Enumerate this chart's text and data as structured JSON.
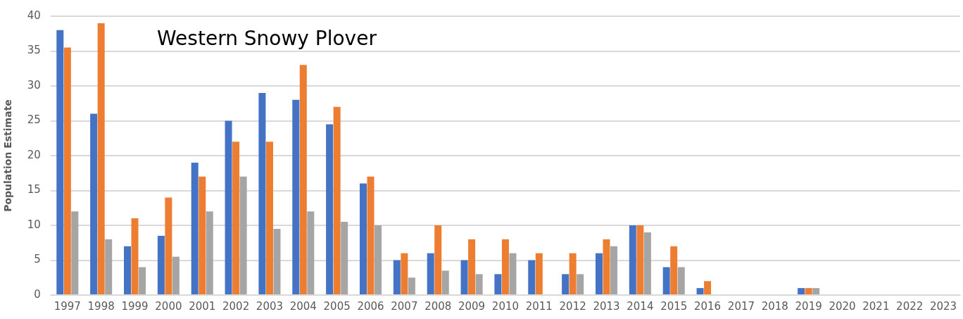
{
  "chart_data": {
    "type": "bar",
    "title": "Western Snowy Plover",
    "ylabel": "Population Estimate",
    "categories": [
      "1997",
      "1998",
      "1999",
      "2000",
      "2001",
      "2002",
      "2003",
      "2004",
      "2005",
      "2006",
      "2007",
      "2008",
      "2009",
      "2010",
      "2011",
      "2012",
      "2013",
      "2014",
      "2015",
      "2016",
      "2017",
      "2018",
      "2019",
      "2020",
      "2021",
      "2022",
      "2023"
    ],
    "series": [
      {
        "color": "#4472c4",
        "values": [
          38,
          26,
          7,
          8.5,
          19,
          25,
          29,
          28,
          24.5,
          16,
          5,
          6,
          5,
          3,
          5,
          3,
          6,
          10,
          4,
          1,
          null,
          null,
          1,
          null,
          null,
          null,
          null
        ]
      },
      {
        "color": "#ed7d31",
        "values": [
          35.5,
          39,
          11,
          14,
          17,
          22,
          22,
          33,
          27,
          17,
          6,
          10,
          8,
          8,
          6,
          6,
          8,
          10,
          7,
          2,
          null,
          null,
          1,
          null,
          null,
          null,
          null
        ]
      },
      {
        "color": "#a5a5a5",
        "values": [
          12,
          8,
          4,
          5.5,
          12,
          17,
          9.5,
          12,
          10.5,
          10,
          2.5,
          3.5,
          3,
          6,
          null,
          3,
          7,
          9,
          4,
          null,
          null,
          null,
          1,
          null,
          null,
          null,
          null
        ]
      }
    ],
    "ylim": [
      0,
      40
    ],
    "yticks": [
      0,
      5,
      10,
      15,
      20,
      25,
      30,
      35,
      40
    ],
    "grid": "y",
    "legend": false
  }
}
